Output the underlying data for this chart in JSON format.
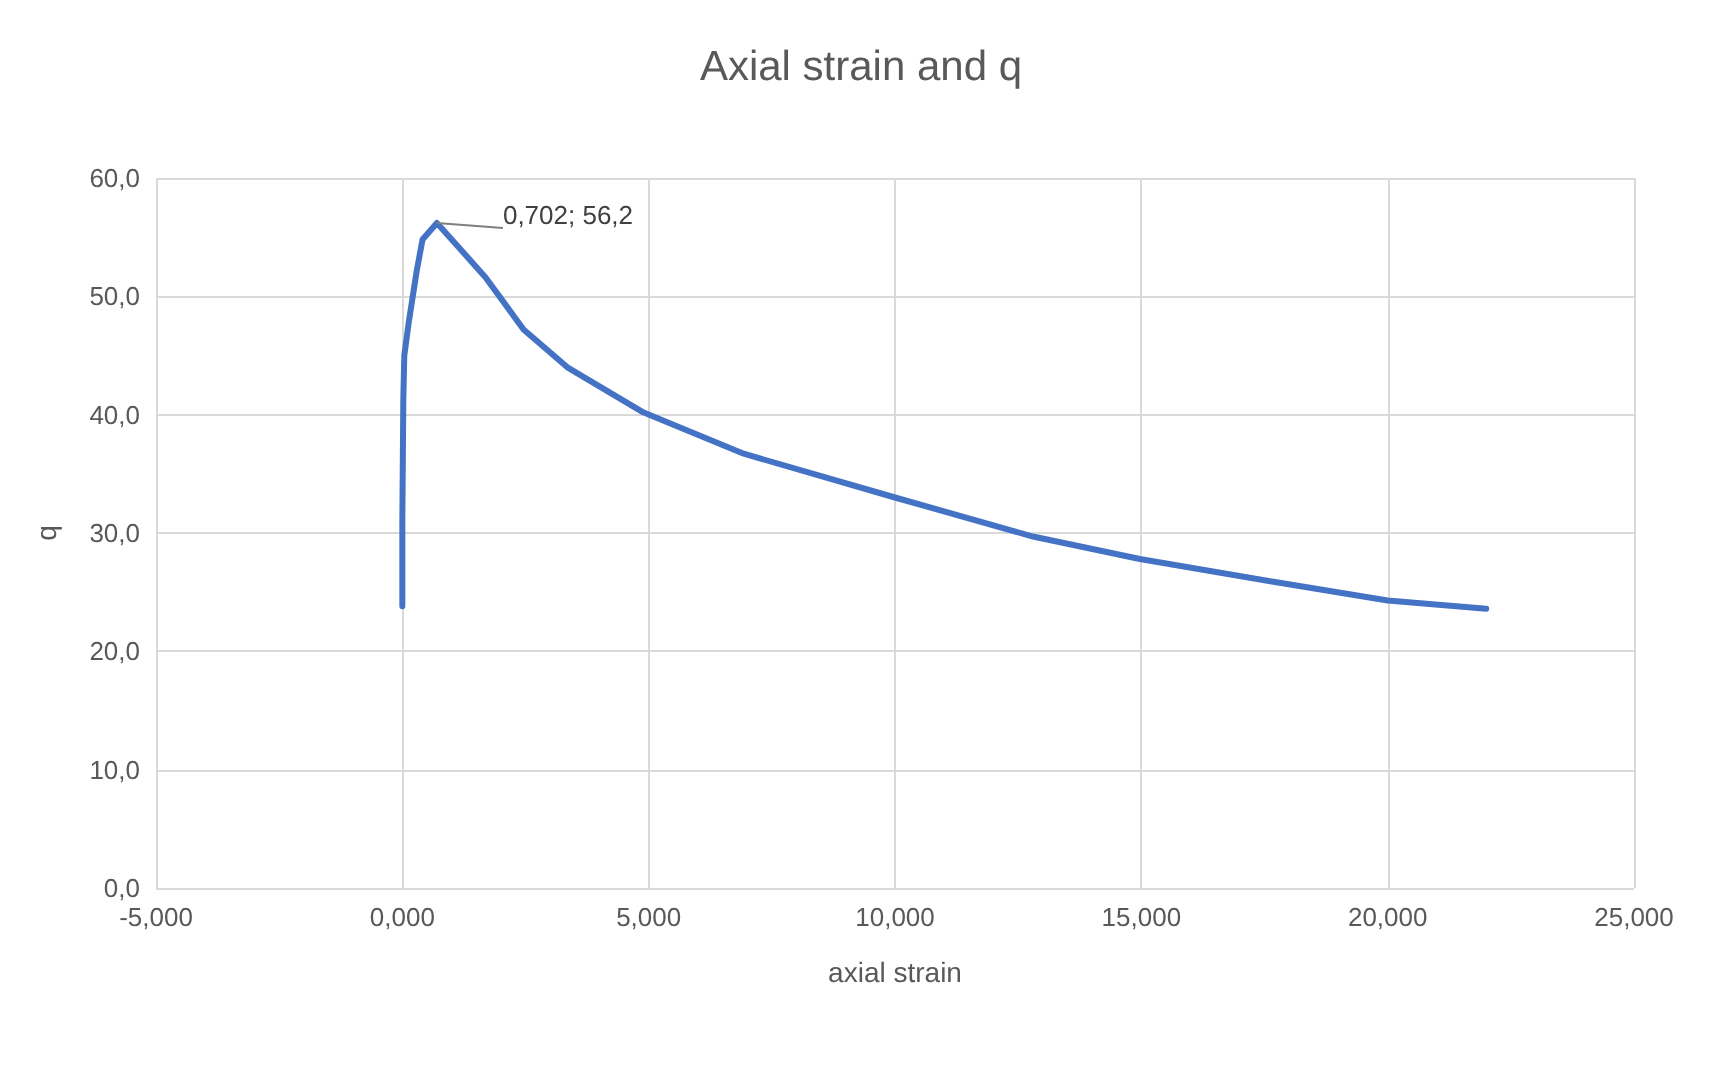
{
  "chart_data": {
    "type": "line",
    "title": "Axial strain and q",
    "xlabel": "axial strain",
    "ylabel": "q",
    "x": [
      0.0,
      0.0,
      0.02,
      0.04,
      0.13,
      0.29,
      0.41,
      0.702,
      1.69,
      2.46,
      3.35,
      4.89,
      5.01,
      6.93,
      10.0,
      12.8,
      14.97,
      17.65,
      20.0,
      22.0
    ],
    "series": [
      {
        "color": "#4472c4",
        "values": [
          23.8,
          31.1,
          41.3,
          45.0,
          47.8,
          52.1,
          54.8,
          56.2,
          51.6,
          47.2,
          44.0,
          40.2,
          40.0,
          36.7,
          33.0,
          29.7,
          27.8,
          25.9,
          24.3,
          23.6
        ],
        "value_labels": [
          null,
          null,
          null,
          null,
          null,
          null,
          null,
          "0,702; 56,2",
          null,
          null,
          null,
          null,
          null,
          null,
          null,
          null,
          null,
          null,
          null,
          null
        ]
      }
    ],
    "xlim": [
      -5,
      25
    ],
    "xticks": [
      {
        "value": -5,
        "label": "-5,000"
      },
      {
        "value": 0,
        "label": "0,000"
      },
      {
        "value": 5,
        "label": "5,000"
      },
      {
        "value": 10,
        "label": "10,000"
      },
      {
        "value": 15,
        "label": "15,000"
      },
      {
        "value": 20,
        "label": "20,000"
      },
      {
        "value": 25,
        "label": "25,000"
      }
    ],
    "ylim": [
      0,
      60
    ],
    "yticks": [
      {
        "value": 0,
        "label": "0,0"
      },
      {
        "value": 10,
        "label": "10,0"
      },
      {
        "value": 20,
        "label": "20,0"
      },
      {
        "value": 30,
        "label": "30,0"
      },
      {
        "value": 40,
        "label": "40,0"
      },
      {
        "value": 50,
        "label": "50,0"
      },
      {
        "value": 60,
        "label": "60,0"
      }
    ],
    "grid": true,
    "marker": "none",
    "line_style": "solid"
  }
}
